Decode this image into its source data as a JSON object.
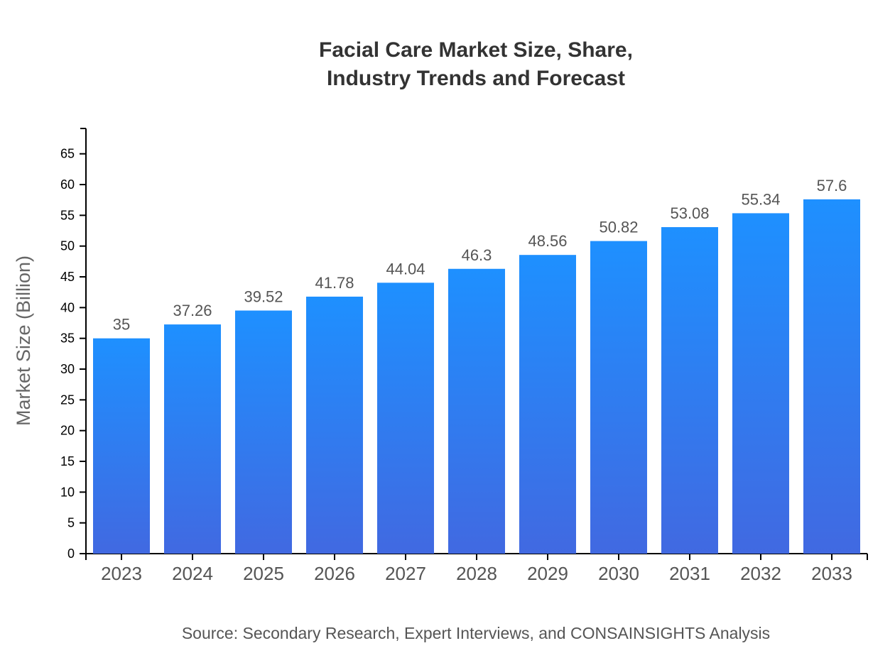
{
  "chart_data": {
    "type": "bar",
    "title_lines": [
      "Facial Care Market Size, Share,",
      "Industry Trends and Forecast"
    ],
    "xlabel": "",
    "ylabel": "Market Size (Billion)",
    "categories": [
      "2023",
      "2024",
      "2025",
      "2026",
      "2027",
      "2028",
      "2029",
      "2030",
      "2031",
      "2032",
      "2033"
    ],
    "values": [
      35,
      37.26,
      39.52,
      41.78,
      44.04,
      46.3,
      48.56,
      50.82,
      53.08,
      55.34,
      57.6
    ],
    "data_labels": [
      "35",
      "37.26",
      "39.52",
      "41.78",
      "44.04",
      "46.3",
      "48.56",
      "50.82",
      "53.08",
      "55.34",
      "57.6"
    ],
    "ylim": [
      0,
      69.12
    ],
    "yticks": [
      0,
      5,
      10,
      15,
      20,
      25,
      30,
      35,
      40,
      45,
      50,
      55,
      60,
      65
    ],
    "grid": false,
    "legend": "none",
    "colors": {
      "bar_top": "#1E90FF",
      "bar_bottom": "#4169E1"
    },
    "source": "Source: Secondary Research, Expert Interviews, and CONSAINSIGHTS Analysis"
  }
}
